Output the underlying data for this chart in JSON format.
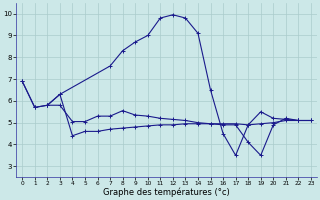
{
  "xlabel": "Graphe des températures (°c)",
  "bg_color": "#cce8e8",
  "line_color": "#1a1a8c",
  "grid_color": "#aacccc",
  "xlim": [
    -0.5,
    23.5
  ],
  "ylim": [
    2.5,
    10.5
  ],
  "yticks": [
    3,
    4,
    5,
    6,
    7,
    8,
    9,
    10
  ],
  "xticks": [
    0,
    1,
    2,
    3,
    4,
    5,
    6,
    7,
    8,
    9,
    10,
    11,
    12,
    13,
    14,
    15,
    16,
    17,
    18,
    19,
    20,
    21,
    22,
    23
  ],
  "line_max_x": [
    0,
    1,
    2,
    3,
    7,
    8,
    9,
    10,
    11,
    12,
    13,
    14,
    15,
    16,
    17,
    18,
    19,
    20,
    21,
    22
  ],
  "line_max_y": [
    6.9,
    5.7,
    5.8,
    6.3,
    7.6,
    8.3,
    8.7,
    9.0,
    9.8,
    9.95,
    9.8,
    9.1,
    6.5,
    4.5,
    3.5,
    4.9,
    5.5,
    5.2,
    5.15,
    5.1
  ],
  "line_mid_x": [
    0,
    1,
    2,
    3,
    4,
    5,
    6,
    7,
    8,
    9,
    10,
    11,
    12,
    13,
    14,
    15,
    16,
    17,
    18,
    19,
    20,
    21,
    22,
    23
  ],
  "line_mid_y": [
    6.9,
    5.7,
    5.8,
    5.8,
    5.05,
    5.05,
    5.3,
    5.3,
    5.55,
    5.35,
    5.3,
    5.2,
    5.15,
    5.1,
    5.0,
    4.95,
    4.95,
    4.95,
    4.9,
    4.95,
    5.0,
    5.1,
    5.1,
    5.1
  ],
  "line_min_x": [
    2,
    3,
    4,
    5,
    6,
    7,
    8,
    9,
    10,
    11,
    12,
    13,
    14,
    15,
    16,
    17,
    18,
    19,
    20,
    21,
    22,
    23
  ],
  "line_min_y": [
    5.8,
    6.3,
    4.4,
    4.6,
    4.6,
    4.7,
    4.75,
    4.8,
    4.85,
    4.9,
    4.9,
    4.95,
    4.95,
    4.95,
    4.9,
    4.9,
    4.1,
    3.5,
    4.9,
    5.2,
    5.1,
    5.1
  ]
}
